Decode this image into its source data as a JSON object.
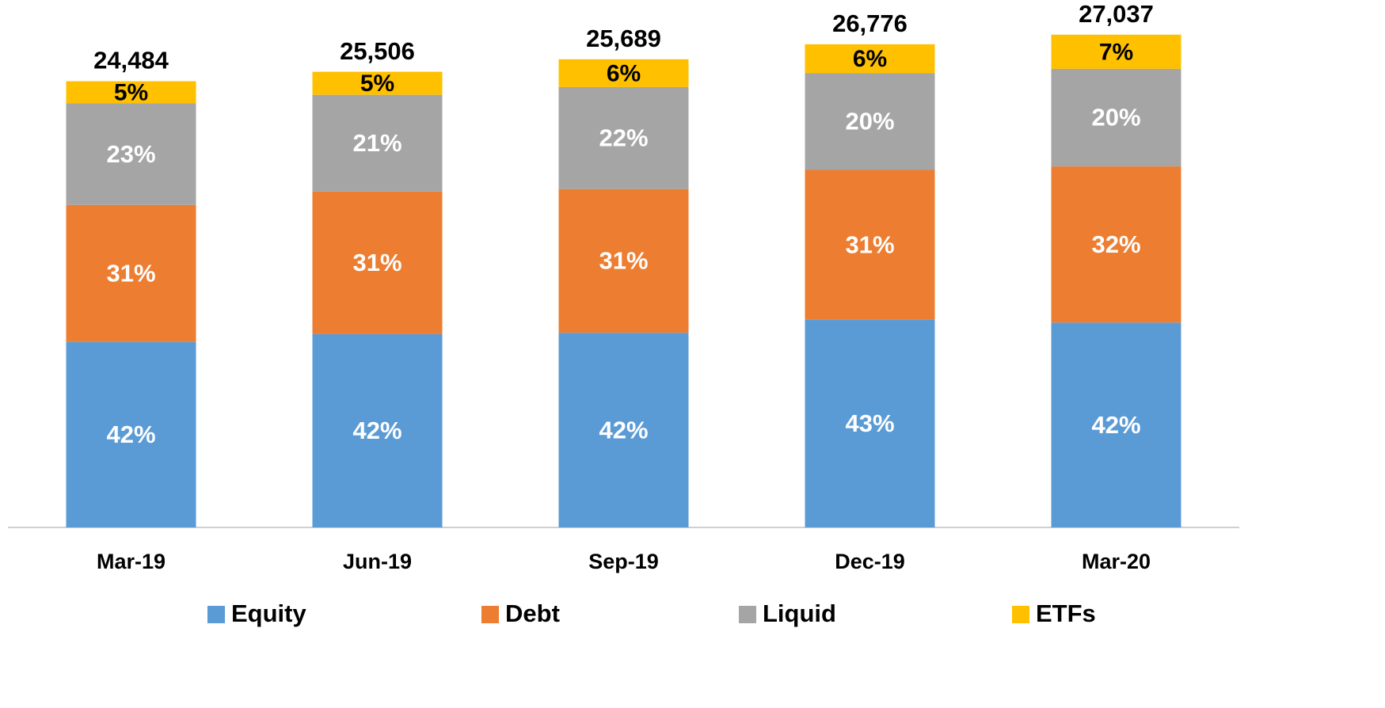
{
  "chart_data": {
    "type": "stacked_bar",
    "categories": [
      "Mar-19",
      "Jun-19",
      "Sep-19",
      "Dec-19",
      "Mar-20"
    ],
    "series": [
      {
        "name": "Equity",
        "color": "#5b9bd5",
        "values": [
          42,
          42,
          42,
          43,
          42
        ],
        "value_labels": [
          "42%",
          "42%",
          "42%",
          "43%",
          "42%"
        ]
      },
      {
        "name": "Debt",
        "color": "#ed7d31",
        "values": [
          31,
          31,
          31,
          31,
          32
        ],
        "value_labels": [
          "31%",
          "31%",
          "31%",
          "31%",
          "32%"
        ]
      },
      {
        "name": "Liquid",
        "color": "#a5a5a5",
        "values": [
          23,
          21,
          22,
          20,
          20
        ],
        "value_labels": [
          "23%",
          "21%",
          "22%",
          "20%",
          "20%"
        ]
      },
      {
        "name": "ETFs",
        "color": "#ffc000",
        "values": [
          5,
          5,
          6,
          6,
          7
        ],
        "value_labels": [
          "5%",
          "5%",
          "6%",
          "6%",
          "7%"
        ]
      }
    ],
    "totals": {
      "values": [
        24484,
        25506,
        25689,
        26776,
        27037
      ],
      "value_labels": [
        "24,484",
        "25,506",
        "25,689",
        "26,776",
        "27,037"
      ]
    },
    "ylim": [
      0,
      28000
    ],
    "legend": "bottom"
  }
}
